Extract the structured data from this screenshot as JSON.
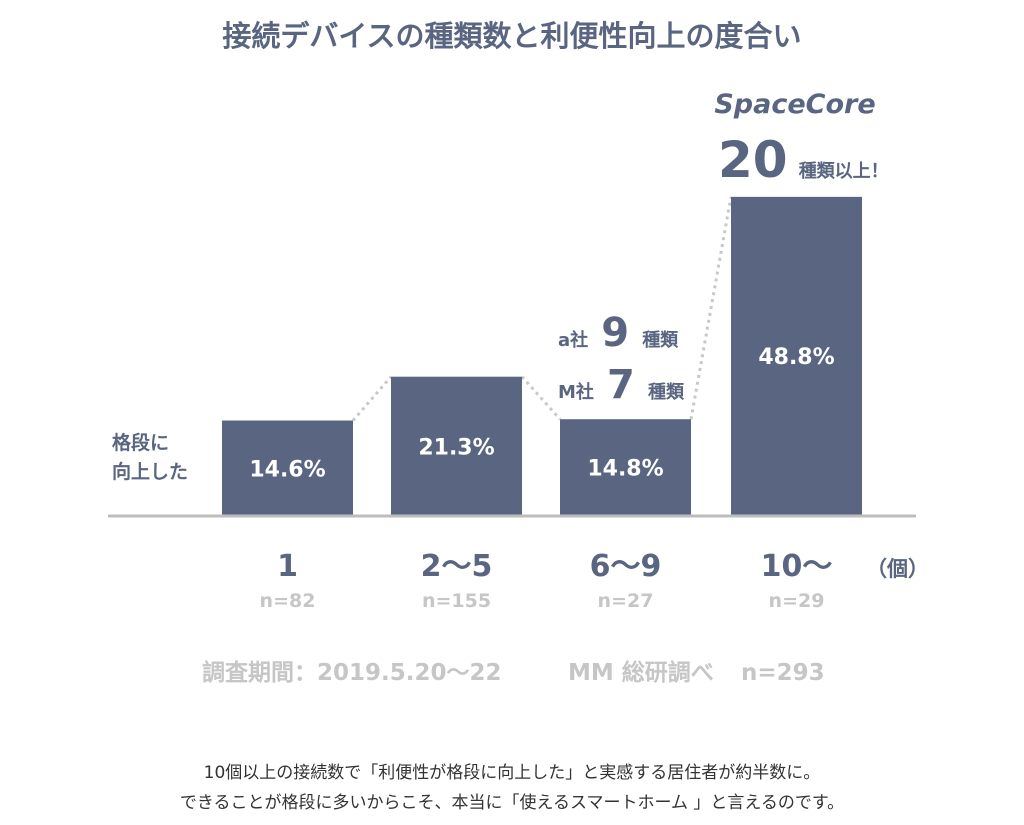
{
  "chart_data": {
    "type": "bar",
    "title": "接続デバイスの種類数と利便性向上の度合い",
    "categories": [
      "1",
      "2〜5",
      "6〜9",
      "10〜"
    ],
    "values": [
      14.6,
      21.3,
      14.8,
      48.8
    ],
    "value_labels": [
      "14.6%",
      "21.3%",
      "14.8%",
      "48.8%"
    ],
    "sample_sizes": [
      "n=82",
      "n=155",
      "n=27",
      "n=29"
    ],
    "unit_label": "（個）",
    "ylabel": "格段に向上した",
    "ylabel_lines": [
      "格段に",
      "向上した"
    ],
    "ylim": [
      0,
      60
    ],
    "grid": false,
    "legend": "none",
    "colors": {
      "bar": "#5a6681",
      "baseline": "#bdbdbd",
      "connector": "#c8c8c8"
    },
    "annotations": {
      "competitor_a": {
        "prefix": "a社",
        "number": "9",
        "suffix": "種類"
      },
      "competitor_m": {
        "prefix": "M社",
        "number": "7",
        "suffix": "種類"
      },
      "spacecore": {
        "brand": "SpaceCore",
        "number": "20",
        "suffix": "種類以上！"
      }
    },
    "survey_note": {
      "period": "調査期間：2019.5.20〜22",
      "source": "MM 総研調べ",
      "n": "n=293"
    },
    "caption": [
      "10個以上の接続数で「利便性が格段に向上した」と実感する居住者が約半数に。",
      "できることが格段に多いからこそ、本当に「使えるスマートホーム 」と言えるのです。"
    ]
  }
}
